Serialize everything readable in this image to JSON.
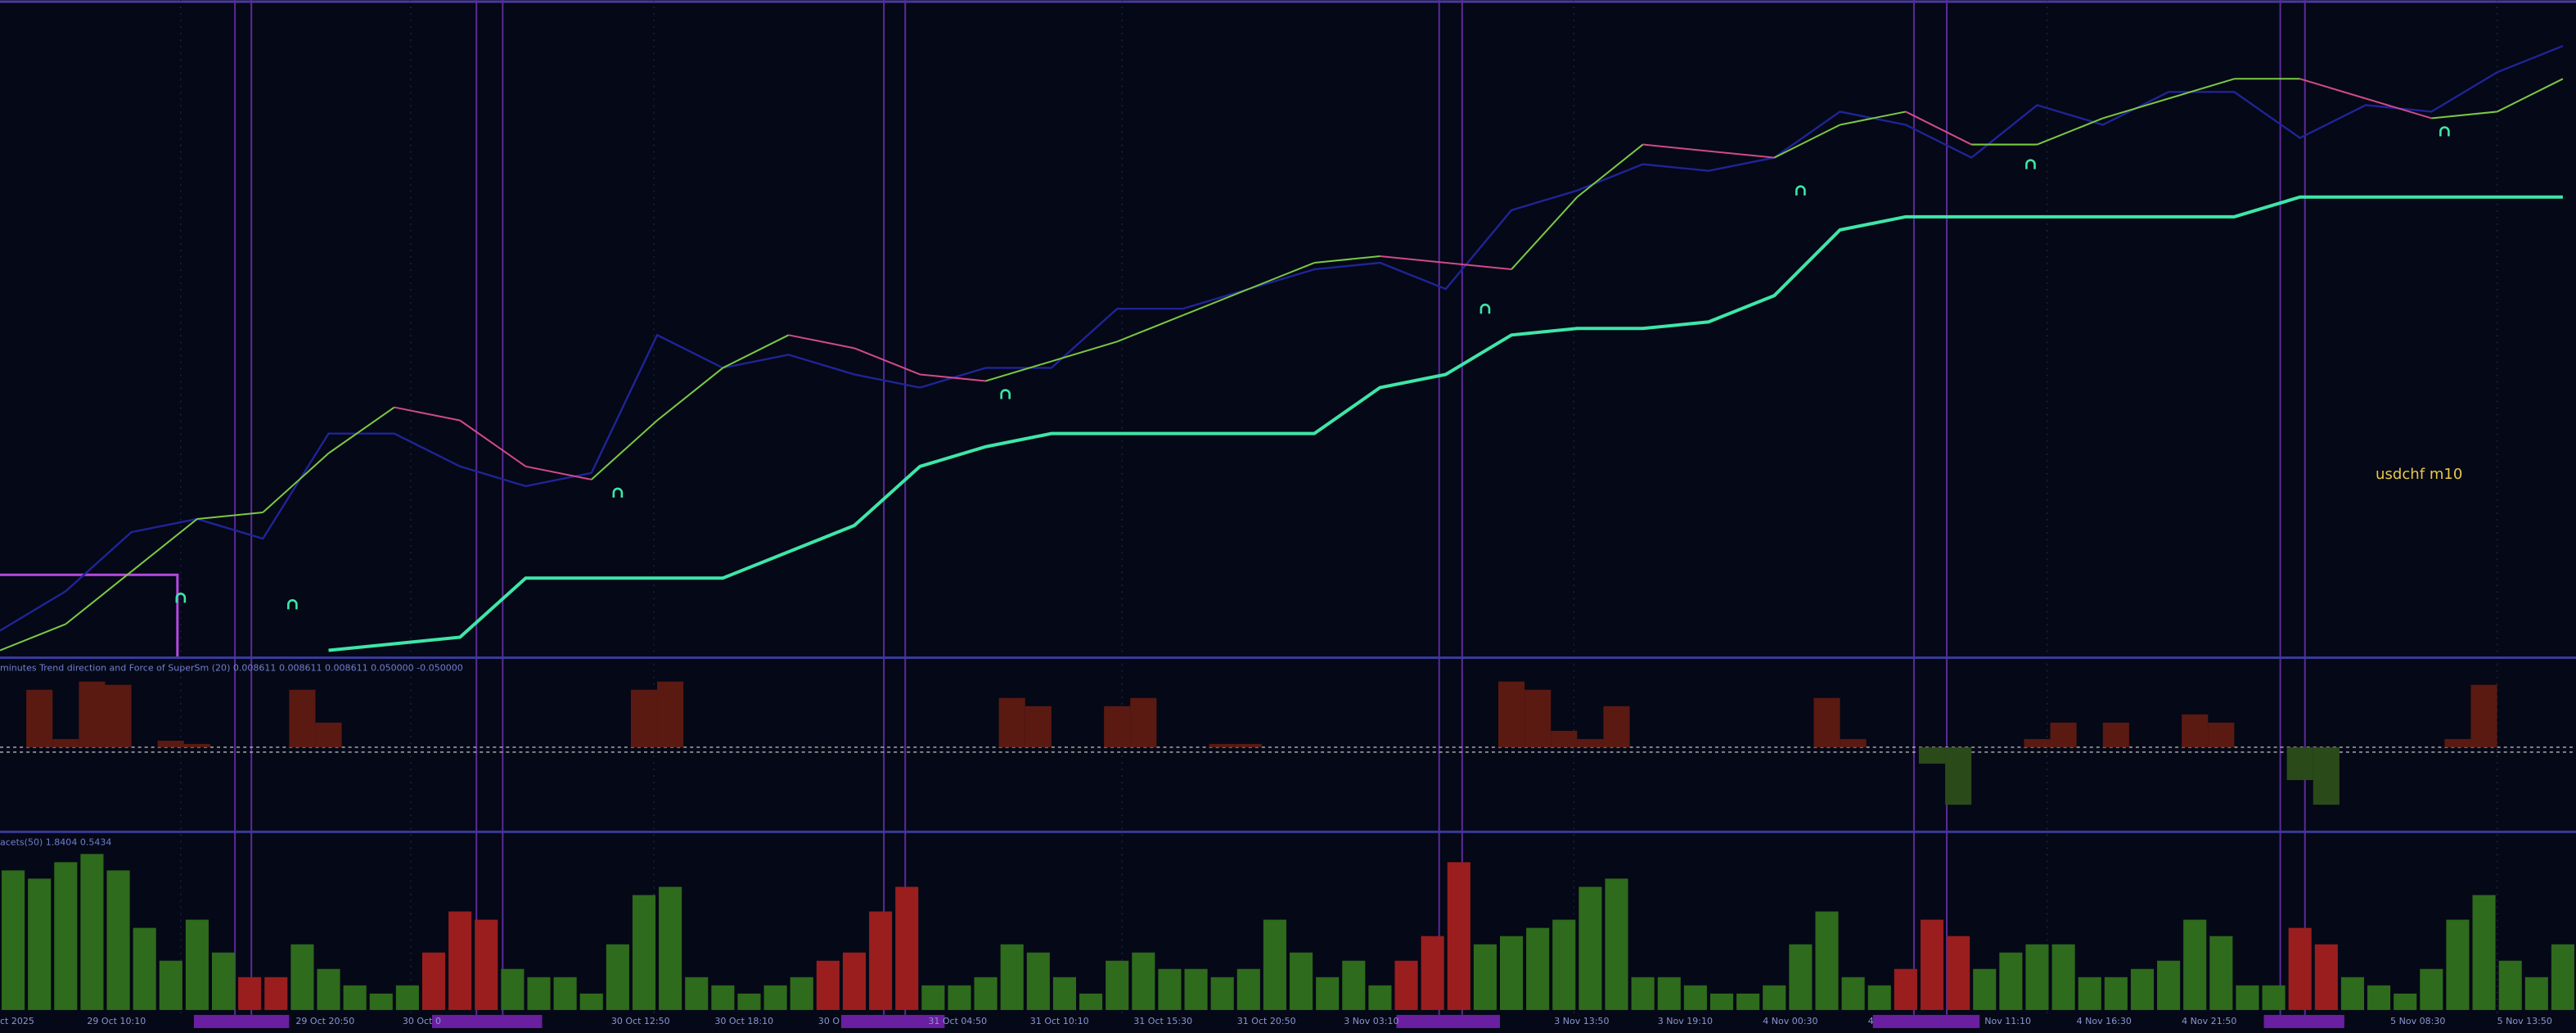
{
  "time_labels": [
    "ct 2025",
    "29 Oct 10:10",
    "29 Oct 20:50",
    "30 Oct 0",
    "30 Oct 12:50",
    "30 Oct 18:10",
    "30 O",
    "31 Oct 04:50",
    "31 Oct 10:10",
    "31 Oct 15:30",
    "31 Oct 20:50",
    "3 Nov 03:10",
    "3 Nov 13:50",
    "3 Nov 19:10",
    "4 Nov 00:30",
    "4",
    "Nov 11:10",
    "4 Nov 16:30",
    "4 Nov 21:50",
    "5 Nov 08:30",
    "5 Nov 13:50"
  ],
  "chart_data": [
    {
      "type": "line",
      "annotation": "usdchf m10",
      "xlim": [
        0,
        39.2
      ],
      "ylim": [
        0,
        100
      ],
      "series": [
        {
          "color": "#1f2496",
          "values": [
            4,
            10,
            19,
            21,
            18,
            34,
            34,
            29,
            26,
            28,
            49,
            44,
            46,
            43,
            41,
            44,
            44,
            53,
            53,
            56,
            59,
            60,
            56,
            68,
            71,
            75,
            74,
            76,
            83,
            81,
            76,
            84,
            81,
            86,
            86,
            79,
            84,
            83,
            89,
            93
          ]
        },
        {
          "color": "#7ac943",
          "down_color": "#d04a8a",
          "values": [
            1,
            5,
            13,
            21,
            22,
            31,
            38,
            36,
            29,
            27,
            36,
            44,
            49,
            47,
            43,
            42,
            45,
            48,
            52,
            56,
            60,
            61,
            60,
            59,
            70,
            78,
            77,
            76,
            81,
            83,
            78,
            78,
            82,
            85,
            88,
            88,
            85,
            82,
            83,
            88
          ]
        },
        {
          "color": "#3ee6a8",
          "values": [
            null,
            null,
            null,
            null,
            null,
            1,
            2,
            3,
            12,
            12,
            12,
            12,
            16,
            20,
            29,
            32,
            34,
            34,
            34,
            34,
            34,
            41,
            43,
            49,
            50,
            50,
            51,
            55,
            65,
            67,
            67,
            67,
            67,
            67,
            67,
            70,
            70,
            70,
            70,
            70
          ]
        }
      ],
      "signals": {
        "color": "#3ee6a8",
        "x": [
          2.75,
          4.45,
          9.4,
          15.3,
          22.6,
          27.4,
          30.9,
          37.2
        ],
        "values": [
          9,
          8,
          25,
          40,
          53,
          71,
          75,
          80
        ]
      }
    },
    {
      "type": "histogram-area",
      "title": "minutes Trend direction and Force of SuperSm (20) 0.008611 0.008611 0.008611 0.050000 -0.050000",
      "xlim": [
        0,
        98
      ],
      "ylim": [
        -51,
        53
      ],
      "up_color": "#5a1a12",
      "down_color": "#2a4a1a",
      "values": [
        0,
        35,
        5,
        40,
        38,
        0,
        4,
        2,
        0,
        0,
        0,
        35,
        15,
        0,
        0,
        0,
        0,
        0,
        0,
        0,
        0,
        0,
        0,
        0,
        35,
        40,
        0,
        0,
        0,
        0,
        0,
        0,
        0,
        0,
        0,
        0,
        0,
        0,
        30,
        25,
        0,
        0,
        25,
        30,
        0,
        0,
        2,
        2,
        0,
        0,
        0,
        0,
        0,
        0,
        0,
        0,
        0,
        40,
        35,
        10,
        5,
        25,
        0,
        0,
        0,
        0,
        0,
        0,
        0,
        30,
        5,
        0,
        0,
        -10,
        -35,
        0,
        0,
        5,
        15,
        0,
        15,
        0,
        0,
        20,
        15,
        0,
        0,
        -20,
        -35,
        0,
        0,
        0,
        0,
        5,
        38,
        0,
        0,
        0
      ]
    },
    {
      "type": "bar",
      "title": "acets(50) 1.8404 0.5434",
      "xlim": [
        0,
        98
      ],
      "ylim": [
        0,
        109
      ],
      "series": [
        {
          "color": "#2e6b1c",
          "values": [
            85,
            80,
            90,
            95,
            85,
            50,
            30,
            55,
            35,
            null,
            null,
            40,
            25,
            15,
            10,
            15,
            null,
            null,
            null,
            25,
            20,
            20,
            10,
            40,
            70,
            75,
            20,
            15,
            10,
            15,
            20,
            null,
            null,
            null,
            null,
            15,
            15,
            20,
            40,
            35,
            20,
            10,
            30,
            35,
            25,
            25,
            20,
            25,
            55,
            35,
            20,
            30,
            15,
            null,
            null,
            null,
            40,
            45,
            50,
            55,
            75,
            80,
            20,
            20,
            15,
            10,
            10,
            15,
            40,
            60,
            20,
            15,
            null,
            null,
            null,
            25,
            35,
            40,
            40,
            20,
            20,
            25,
            30,
            55,
            45,
            15,
            15,
            null,
            null,
            20,
            15,
            10,
            25,
            55,
            70,
            30,
            20,
            40
          ]
        },
        {
          "color": "#9a1e1e",
          "values": [
            null,
            null,
            null,
            null,
            null,
            null,
            null,
            null,
            null,
            20,
            20,
            null,
            null,
            null,
            null,
            null,
            35,
            60,
            55,
            null,
            null,
            null,
            null,
            null,
            null,
            null,
            null,
            null,
            null,
            null,
            null,
            30,
            35,
            60,
            75,
            null,
            null,
            null,
            null,
            null,
            null,
            null,
            null,
            null,
            null,
            null,
            null,
            null,
            null,
            null,
            null,
            null,
            null,
            30,
            45,
            90,
            null,
            null,
            null,
            null,
            null,
            null,
            null,
            null,
            null,
            null,
            null,
            null,
            null,
            null,
            null,
            null,
            25,
            55,
            45,
            null,
            null,
            null,
            null,
            null,
            null,
            null,
            null,
            null,
            null,
            null,
            null,
            50,
            40,
            null,
            null,
            null,
            null,
            null,
            null,
            null,
            null,
            null
          ]
        }
      ]
    }
  ]
}
